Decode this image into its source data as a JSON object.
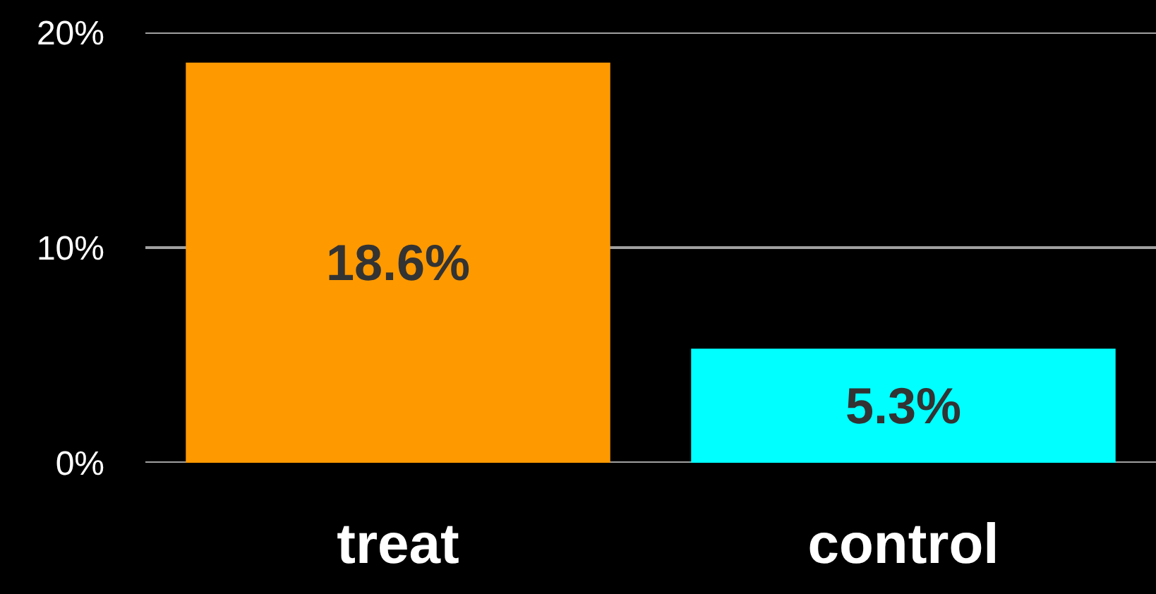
{
  "chart_data": {
    "type": "bar",
    "categories": [
      "treat",
      "control"
    ],
    "values": [
      18.6,
      5.3
    ],
    "colors": [
      "#ff9900",
      "#00ffff"
    ],
    "value_labels": [
      "18.6%",
      "5.3%"
    ],
    "ylim": [
      0,
      20
    ],
    "yticks": [
      {
        "value": 0,
        "label": "0%"
      },
      {
        "value": 10,
        "label": "10%"
      },
      {
        "value": 20,
        "label": "20%"
      }
    ],
    "grid": "y"
  }
}
